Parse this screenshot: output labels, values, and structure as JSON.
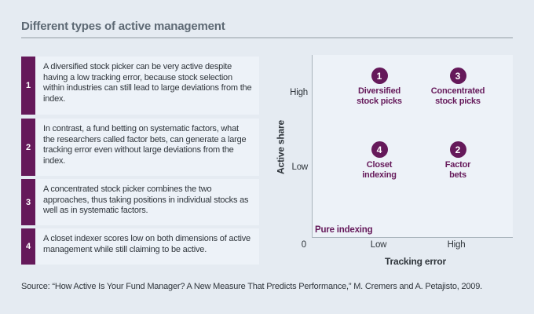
{
  "title": "Different types of active management",
  "panel": {
    "items": [
      {
        "number": "1",
        "text": "A diversified stock picker can be very active despite having a low tracking error, because stock selection within industries can still lead to large deviations from the index."
      },
      {
        "number": "2",
        "text": "In contrast, a fund betting on systematic factors, what the researchers called factor bets, can generate a large tracking error even without large deviations from the index."
      },
      {
        "number": "3",
        "text": "A concentrated stock picker combines the two approaches, thus taking positions in individual stocks as well as in systematic factors."
      },
      {
        "number": "4",
        "text": "A closet indexer scores low on both dimensions of active management while still claiming to be active."
      }
    ]
  },
  "chart_data": {
    "type": "scatter",
    "title": "Different types of active management",
    "xlabel": "Tracking error",
    "ylabel": "Active share",
    "x_tick_labels": [
      "Low",
      "High"
    ],
    "y_tick_labels": [
      "High",
      "Low"
    ],
    "origin_label": "0",
    "corner_annotation": "Pure indexing",
    "grid": false,
    "points": [
      {
        "number": "1",
        "line1": "Diversified",
        "line2": "stock picks",
        "tracking_error": "Low",
        "active_share": "High"
      },
      {
        "number": "3",
        "line1": "Concentrated",
        "line2": "stock picks",
        "tracking_error": "High",
        "active_share": "High"
      },
      {
        "number": "4",
        "line1": "Closet",
        "line2": "indexing",
        "tracking_error": "Low",
        "active_share": "Low"
      },
      {
        "number": "2",
        "line1": "Factor",
        "line2": "bets",
        "tracking_error": "High",
        "active_share": "Low"
      }
    ]
  },
  "source": "Source: “How Active Is Your Fund Manager? A New Measure That Predicts Performance,” M. Cremers and A. Petajisto, 2009.",
  "colors": {
    "accent_purple": "#65195a",
    "page_background": "#e5ebf2",
    "panel_background": "#edf2f8",
    "axis_gray": "#a9b4bc",
    "title_gray": "#5d6974",
    "text_dark": "#2f353b"
  }
}
